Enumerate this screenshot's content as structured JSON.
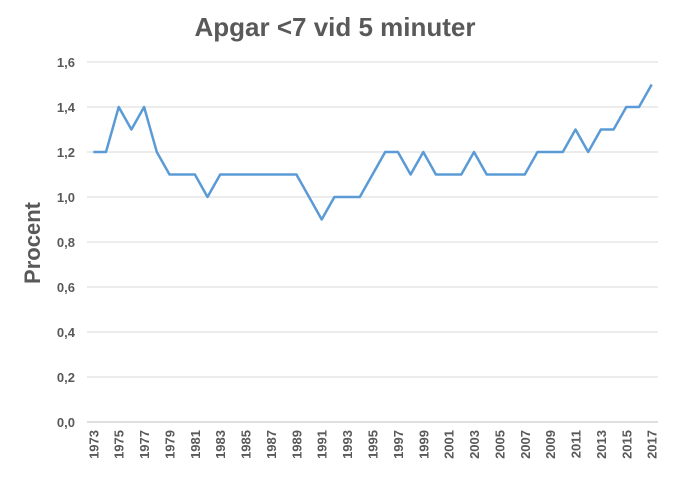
{
  "chart_data": {
    "type": "line",
    "title": "Apgar <7 vid 5 minuter",
    "xlabel": "",
    "ylabel": "Procent",
    "ylim": [
      0,
      1.6
    ],
    "yticks": [
      "0,0",
      "0,2",
      "0,4",
      "0,6",
      "0,8",
      "1,0",
      "1,2",
      "1,4",
      "1,6"
    ],
    "x": [
      1973,
      1974,
      1975,
      1976,
      1977,
      1978,
      1979,
      1980,
      1981,
      1982,
      1983,
      1984,
      1985,
      1986,
      1987,
      1988,
      1989,
      1990,
      1991,
      1992,
      1993,
      1994,
      1995,
      1996,
      1997,
      1998,
      1999,
      2000,
      2001,
      2002,
      2003,
      2004,
      2005,
      2006,
      2007,
      2008,
      2009,
      2010,
      2011,
      2012,
      2013,
      2014,
      2015,
      2016,
      2017
    ],
    "xtick_labels": [
      "1973",
      "1975",
      "1977",
      "1979",
      "1981",
      "1983",
      "1985",
      "1987",
      "1989",
      "1991",
      "1993",
      "1995",
      "1997",
      "1999",
      "2001",
      "2003",
      "2005",
      "2007",
      "2009",
      "2011",
      "2013",
      "2015",
      "2017"
    ],
    "series": [
      {
        "values": [
          1.2,
          1.2,
          1.4,
          1.3,
          1.4,
          1.2,
          1.1,
          1.1,
          1.1,
          1.0,
          1.1,
          1.1,
          1.1,
          1.1,
          1.1,
          1.1,
          1.1,
          1.0,
          0.9,
          1.0,
          1.0,
          1.0,
          1.1,
          1.2,
          1.2,
          1.1,
          1.2,
          1.1,
          1.1,
          1.1,
          1.2,
          1.1,
          1.1,
          1.1,
          1.1,
          1.2,
          1.2,
          1.2,
          1.3,
          1.2,
          1.3,
          1.3,
          1.4,
          1.4,
          1.5
        ],
        "color": "#5B9BD5"
      }
    ],
    "grid": true,
    "legend": "none"
  }
}
